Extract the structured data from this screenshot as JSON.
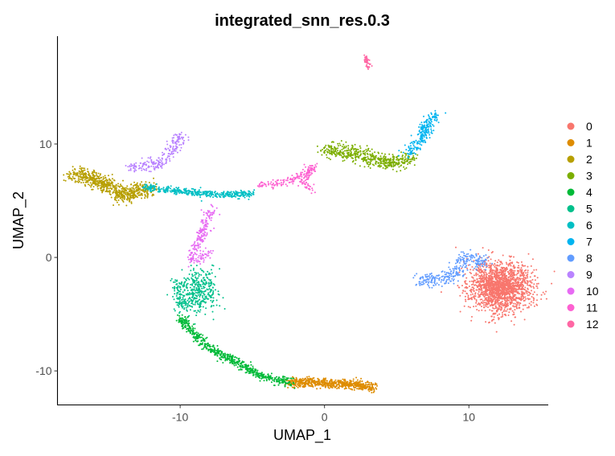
{
  "chart_data": {
    "type": "scatter",
    "title": "integrated_snn_res.0.3",
    "xlabel": "UMAP_1",
    "ylabel": "UMAP_2",
    "xlim": [
      -18.5,
      15.5
    ],
    "ylim": [
      -13,
      19.5
    ],
    "x_ticks": [
      -10,
      0,
      10
    ],
    "x_tick_labels": [
      "-10",
      "0",
      "10"
    ],
    "y_ticks": [
      -10,
      0,
      10
    ],
    "y_tick_labels": [
      "-10",
      "0",
      "10"
    ],
    "grid": false,
    "legend_position": "right",
    "series": [
      {
        "name": "0",
        "color": "#F8766D",
        "clusters": [
          {
            "cx": 12.2,
            "cy": -2.6,
            "sx": 1.05,
            "sy": 1.1,
            "n": 1800
          }
        ]
      },
      {
        "name": "1",
        "color": "#DE8C00",
        "path": [
          [
            -2.5,
            -11.0
          ],
          [
            0.0,
            -11.05
          ],
          [
            2.0,
            -11.2
          ],
          [
            3.5,
            -11.5
          ]
        ],
        "spread": 0.2,
        "n": 650
      },
      {
        "name": "2",
        "color": "#B79F00",
        "path": [
          [
            -17.5,
            7.35
          ],
          [
            -16.0,
            7.0
          ],
          [
            -15.0,
            6.3
          ],
          [
            -14.0,
            5.4
          ],
          [
            -13.0,
            5.9
          ],
          [
            -12.0,
            6.2
          ]
        ],
        "spread": 0.35,
        "n": 700
      },
      {
        "name": "3",
        "color": "#7CAE00",
        "path": [
          [
            0.0,
            9.5
          ],
          [
            1.5,
            9.3
          ],
          [
            2.5,
            9.0
          ],
          [
            3.5,
            8.6
          ],
          [
            4.8,
            8.3
          ],
          [
            6.0,
            8.8
          ]
        ],
        "spread": 0.35,
        "n": 500
      },
      {
        "name": "4",
        "color": "#00BA38",
        "path": [
          [
            -10.0,
            -5.2
          ],
          [
            -9.0,
            -6.8
          ],
          [
            -8.0,
            -8.0
          ],
          [
            -6.0,
            -9.3
          ],
          [
            -4.5,
            -10.4
          ],
          [
            -3.0,
            -10.9
          ],
          [
            -2.3,
            -11.0
          ]
        ],
        "spread": 0.2,
        "n": 600
      },
      {
        "name": "5",
        "color": "#00C08B",
        "clusters": [
          {
            "cx": -8.8,
            "cy": -2.9,
            "sx": 0.7,
            "sy": 0.9,
            "n": 380
          }
        ],
        "path": [
          [
            -10.2,
            -2.0
          ],
          [
            -10.0,
            -4.5
          ]
        ],
        "spread": 0.2,
        "n": 80
      },
      {
        "name": "6",
        "color": "#00BFC4",
        "path": [
          [
            -12.5,
            6.2
          ],
          [
            -11.0,
            6.0
          ],
          [
            -9.0,
            5.7
          ],
          [
            -7.0,
            5.5
          ],
          [
            -5.0,
            5.6
          ]
        ],
        "spread": 0.15,
        "n": 420
      },
      {
        "name": "7",
        "color": "#00B4F0",
        "path": [
          [
            5.7,
            9.2
          ],
          [
            6.5,
            10.0
          ],
          [
            7.0,
            11.2
          ],
          [
            7.3,
            12.2
          ],
          [
            7.8,
            12.6
          ]
        ],
        "spread": 0.25,
        "n": 220
      },
      {
        "name": "8",
        "color": "#619CFF",
        "path": [
          [
            6.5,
            -2.0
          ],
          [
            7.8,
            -1.9
          ],
          [
            9.0,
            -1.6
          ],
          [
            9.8,
            0.0
          ],
          [
            10.5,
            -0.2
          ],
          [
            11.2,
            -0.6
          ]
        ],
        "spread": 0.3,
        "n": 300
      },
      {
        "name": "9",
        "color": "#B983FF",
        "path": [
          [
            -13.5,
            7.9
          ],
          [
            -12.5,
            8.1
          ],
          [
            -11.5,
            8.2
          ],
          [
            -11.0,
            8.7
          ],
          [
            -10.5,
            9.5
          ],
          [
            -10.0,
            10.9
          ]
        ],
        "spread": 0.25,
        "n": 220
      },
      {
        "name": "10",
        "color": "#E76BF3",
        "path": [
          [
            -7.8,
            4.4
          ],
          [
            -8.2,
            3.0
          ],
          [
            -8.5,
            1.8
          ],
          [
            -9.0,
            0.5
          ],
          [
            -9.1,
            -0.5
          ],
          [
            -8.0,
            0.5
          ]
        ],
        "spread": 0.22,
        "n": 220
      },
      {
        "name": "11",
        "color": "#FD61D1",
        "path": [
          [
            -4.5,
            6.3
          ],
          [
            -3.5,
            6.5
          ],
          [
            -2.4,
            6.7
          ],
          [
            -1.5,
            7.5
          ],
          [
            -0.8,
            8.0
          ],
          [
            -1.5,
            6.5
          ],
          [
            -0.8,
            5.9
          ]
        ],
        "spread": 0.15,
        "n": 200
      },
      {
        "name": "12",
        "color": "#FF67A4",
        "path": [
          [
            2.85,
            17.8
          ],
          [
            2.95,
            17.0
          ],
          [
            3.05,
            16.7
          ]
        ],
        "spread": 0.08,
        "n": 50
      }
    ]
  }
}
